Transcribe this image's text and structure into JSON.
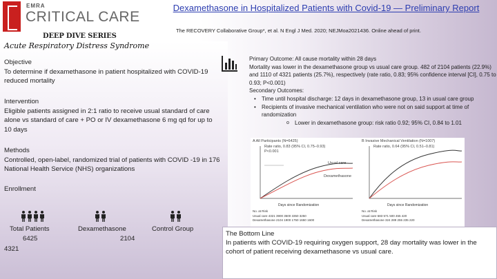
{
  "header": {
    "title": "Dexamethasone in Hospitalized Patients with Covid-19 — Preliminary Report",
    "citation": "The RECOVERY Collaborative Group*, et al. N Engl J Med. 2020; NEJMoa2021436. Online ahead of print."
  },
  "logo": {
    "org": "EMRA",
    "name": "CRITICAL CARE",
    "series": "DEEP DIVE SERIES",
    "topic": "Acute Respiratory Distress Syndrome"
  },
  "objective": {
    "heading": "Objective",
    "text": "To determine if dexamethasone in patient hospitalized with COVID-19 reduced mortality"
  },
  "intervention": {
    "heading": "Intervention",
    "text": "Eligible patients assigned in 2:1 ratio to receive usual standard of care alone vs standard of care + PO or IV dexamethasone 6 mg qd for up to 10 days"
  },
  "methods": {
    "heading": "Methods",
    "text": "Controlled, open-label, randomized trial of patients with COVID -19 in 176 National Health Service (NHS) organizations"
  },
  "enrollment": {
    "heading": "Enrollment",
    "groups": [
      {
        "label": "Total Patients",
        "count": "6425"
      },
      {
        "label": "Dexamethasone",
        "count": "2104"
      },
      {
        "label": "Control Group",
        "count": "4321"
      }
    ]
  },
  "outcomes": {
    "primary": "Primary Outcome: All cause mortality within 28 days",
    "primary_detail": "Mortality was lower in the dexamethasone group vs usual care group. 482 of 2104 patients (22.9%) and 1110 of 4321 patients (25.7%), respectively (rate ratio, 0.83; 95% confidence interval [CI], 0.75 to 0.93; P<0.001)",
    "secondary": "Secondary Outcomes:",
    "bullet_1": "Time until hospital discharge: 12 days in dexamethasone group, 13 in usual care group",
    "bullet_2": "Recipients of invasive mechanical ventilation who were not on said support at time of randomization",
    "sub_bullet": "Lower in dexamethasone group: risk ratio 0.92; 95% CI, 0.84 to 1.01"
  },
  "figure": {
    "panel_a": {
      "label": "A  All Participants (N=6425)",
      "rate_ratio": "Rate ratio, 0.83 (95% CI, 0.75–0.93)",
      "p_value": "P<0.001",
      "series_1": "Usual care",
      "series_2": "Dexamethasone",
      "xlabel": "Days since Randomization",
      "risk_heading": "No. at Risk",
      "risk_row_1": "Usual care  4321  3900  3500  3350  3250",
      "risk_row_2": "Dexamethasone  2104  1900  1750  1650  1600"
    },
    "panel_b": {
      "label": "B  Invasive Mechanical Ventilation (N=1007)",
      "rate_ratio": "Rate ratio, 0.64 (95% CI, 0.51–0.81)",
      "xlabel": "Days since Randomization",
      "risk_heading": "No. at Risk",
      "risk_row_1": "Usual care  683  571  500  455  420",
      "risk_row_2": "Dexamethasone  324  289  255  235  220"
    }
  },
  "bottom_line": {
    "heading": "The Bottom Line",
    "text": "In patients with COVID-19 requiring oxygen support, 28 day mortality was lower in the cohort of patient receiving dexamethasone vs usual care."
  },
  "colors": {
    "title": "#2c3db0",
    "logo_red": "#c9201f",
    "curve_usual": "#333333",
    "curve_dexa": "#d9534f"
  }
}
